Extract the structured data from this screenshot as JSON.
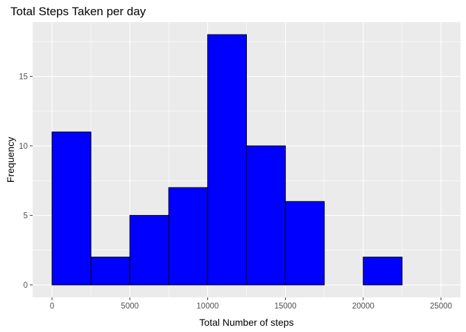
{
  "chart_data": {
    "type": "bar",
    "title": "Total Steps Taken per day",
    "xlabel": "Total Number of steps",
    "ylabel": "Frequency",
    "bin_width": 2500,
    "bins": [
      {
        "start": 0,
        "end": 2500,
        "count": 11
      },
      {
        "start": 2500,
        "end": 5000,
        "count": 2
      },
      {
        "start": 5000,
        "end": 7500,
        "count": 5
      },
      {
        "start": 7500,
        "end": 10000,
        "count": 7
      },
      {
        "start": 10000,
        "end": 12500,
        "count": 18
      },
      {
        "start": 12500,
        "end": 15000,
        "count": 10
      },
      {
        "start": 15000,
        "end": 17500,
        "count": 6
      },
      {
        "start": 17500,
        "end": 20000,
        "count": 0
      },
      {
        "start": 20000,
        "end": 22500,
        "count": 2
      },
      {
        "start": 22500,
        "end": 25000,
        "count": 0
      }
    ],
    "xlim": [
      -1250,
      26250
    ],
    "ylim": [
      -0.9,
      18.9
    ],
    "x_ticks": [
      0,
      5000,
      10000,
      15000,
      20000,
      25000
    ],
    "x_tick_labels": [
      "0",
      "5000",
      "10000",
      "15000",
      "20000",
      "25000"
    ],
    "y_ticks": [
      0,
      5,
      10,
      15
    ],
    "y_tick_labels": [
      "0",
      "5",
      "10",
      "15"
    ],
    "fill_color": "#0000ff",
    "edge_color": "#000000",
    "panel_color": "#ebebeb",
    "grid_color": "#ffffff",
    "grid": true,
    "legend": "none"
  }
}
